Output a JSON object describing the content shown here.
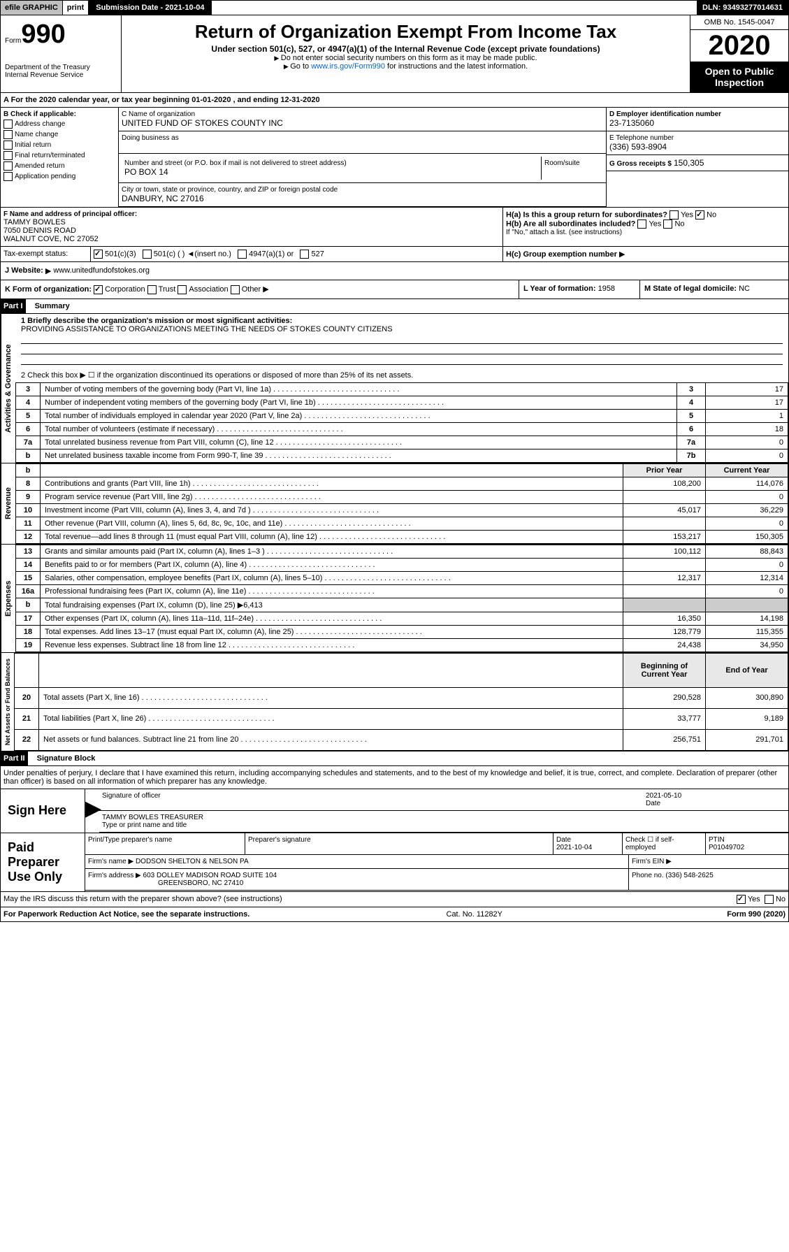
{
  "topbar": {
    "efile": "efile GRAPHIC",
    "print": "print",
    "submission": "Submission Date - 2021-10-04",
    "dln": "DLN: 93493277014631"
  },
  "header": {
    "form_prefix": "Form",
    "form_num": "990",
    "dept": "Department of the Treasury\nInternal Revenue Service",
    "title": "Return of Organization Exempt From Income Tax",
    "subtitle": "Under section 501(c), 527, or 4947(a)(1) of the Internal Revenue Code (except private foundations)",
    "note1": "Do not enter social security numbers on this form as it may be made public.",
    "note2_pre": "Go to ",
    "note2_link": "www.irs.gov/Form990",
    "note2_post": " for instructions and the latest information.",
    "omb": "OMB No. 1545-0047",
    "year": "2020",
    "inspect": "Open to Public Inspection"
  },
  "period": {
    "text": "A For the 2020 calendar year, or tax year beginning 01-01-2020    , and ending 12-31-2020"
  },
  "checkboxes": {
    "heading": "B Check if applicable:",
    "items": [
      "Address change",
      "Name change",
      "Initial return",
      "Final return/terminated",
      "Amended return",
      "Application pending"
    ]
  },
  "org": {
    "name_label": "C Name of organization",
    "name": "UNITED FUND OF STOKES COUNTY INC",
    "dba_label": "Doing business as",
    "addr_label": "Number and street (or P.O. box if mail is not delivered to street address)",
    "room_label": "Room/suite",
    "addr": "PO BOX 14",
    "city_label": "City or town, state or province, country, and ZIP or foreign postal code",
    "city": "DANBURY, NC  27016"
  },
  "ein": {
    "label": "D Employer identification number",
    "value": "23-7135060"
  },
  "phone": {
    "label": "E Telephone number",
    "value": "(336) 593-8904"
  },
  "gross": {
    "label": "G Gross receipts $",
    "value": "150,305"
  },
  "officer": {
    "label": "F Name and address of principal officer:",
    "name": "TAMMY BOWLES",
    "addr1": "7050 DENNIS ROAD",
    "addr2": "WALNUT COVE, NC  27052"
  },
  "ha": {
    "label": "H(a) Is this a group return for subordinates?",
    "yes": "Yes",
    "no": "No"
  },
  "hb": {
    "label": "H(b) Are all subordinates included?",
    "note": "If \"No,\" attach a list. (see instructions)"
  },
  "hc": {
    "label": "H(c) Group exemption number"
  },
  "tax_status": {
    "label": "Tax-exempt status:",
    "opt1": "501(c)(3)",
    "opt2": "501(c) (  ) ◄(insert no.)",
    "opt3": "4947(a)(1) or",
    "opt4": "527"
  },
  "website": {
    "label": "J  Website:",
    "value": "www.unitedfundofstokes.org"
  },
  "form_org": {
    "label": "K Form of organization:",
    "opts": [
      "Corporation",
      "Trust",
      "Association",
      "Other"
    ]
  },
  "year_formation": {
    "label": "L Year of formation:",
    "value": "1958"
  },
  "domicile": {
    "label": "M State of legal domicile:",
    "value": "NC"
  },
  "part1": {
    "title": "Part I",
    "subtitle": "Summary"
  },
  "mission": {
    "label": "1 Briefly describe the organization's mission or most significant activities:",
    "text": "PROVIDING ASSISTANCE TO ORGANIZATIONS MEETING THE NEEDS OF STOKES COUNTY CITIZENS"
  },
  "activities_label": "Activities & Governance",
  "revenue_label": "Revenue",
  "expenses_label": "Expenses",
  "netassets_label": "Net Assets or Fund Balances",
  "line2": "2  Check this box ▶ ☐ if the organization discontinued its operations or disposed of more than 25% of its net assets.",
  "lines_nums": [
    {
      "n": "3",
      "label": "Number of voting members of the governing body (Part VI, line 1a)",
      "box": "3",
      "val": "17"
    },
    {
      "n": "4",
      "label": "Number of independent voting members of the governing body (Part VI, line 1b)",
      "box": "4",
      "val": "17"
    },
    {
      "n": "5",
      "label": "Total number of individuals employed in calendar year 2020 (Part V, line 2a)",
      "box": "5",
      "val": "1"
    },
    {
      "n": "6",
      "label": "Total number of volunteers (estimate if necessary)",
      "box": "6",
      "val": "18"
    },
    {
      "n": "7a",
      "label": "Total unrelated business revenue from Part VIII, column (C), line 12",
      "box": "7a",
      "val": "0"
    },
    {
      "n": "b",
      "label": "Net unrelated business taxable income from Form 990-T, line 39",
      "box": "7b",
      "val": "0"
    }
  ],
  "prior_year": "Prior Year",
  "current_year": "Current Year",
  "revenue_lines": [
    {
      "n": "8",
      "label": "Contributions and grants (Part VIII, line 1h)",
      "prior": "108,200",
      "curr": "114,076"
    },
    {
      "n": "9",
      "label": "Program service revenue (Part VIII, line 2g)",
      "prior": "",
      "curr": "0"
    },
    {
      "n": "10",
      "label": "Investment income (Part VIII, column (A), lines 3, 4, and 7d )",
      "prior": "45,017",
      "curr": "36,229"
    },
    {
      "n": "11",
      "label": "Other revenue (Part VIII, column (A), lines 5, 6d, 8c, 9c, 10c, and 11e)",
      "prior": "",
      "curr": "0"
    },
    {
      "n": "12",
      "label": "Total revenue—add lines 8 through 11 (must equal Part VIII, column (A), line 12)",
      "prior": "153,217",
      "curr": "150,305"
    }
  ],
  "expense_lines": [
    {
      "n": "13",
      "label": "Grants and similar amounts paid (Part IX, column (A), lines 1–3 )",
      "prior": "100,112",
      "curr": "88,843"
    },
    {
      "n": "14",
      "label": "Benefits paid to or for members (Part IX, column (A), line 4)",
      "prior": "",
      "curr": "0"
    },
    {
      "n": "15",
      "label": "Salaries, other compensation, employee benefits (Part IX, column (A), lines 5–10)",
      "prior": "12,317",
      "curr": "12,314"
    },
    {
      "n": "16a",
      "label": "Professional fundraising fees (Part IX, column (A), line 11e)",
      "prior": "",
      "curr": "0"
    },
    {
      "n": "b",
      "label": "Total fundraising expenses (Part IX, column (D), line 25) ▶6,413",
      "prior": "—",
      "curr": "—"
    },
    {
      "n": "17",
      "label": "Other expenses (Part IX, column (A), lines 11a–11d, 11f–24e)",
      "prior": "16,350",
      "curr": "14,198"
    },
    {
      "n": "18",
      "label": "Total expenses. Add lines 13–17 (must equal Part IX, column (A), line 25)",
      "prior": "128,779",
      "curr": "115,355"
    },
    {
      "n": "19",
      "label": "Revenue less expenses. Subtract line 18 from line 12",
      "prior": "24,438",
      "curr": "34,950"
    }
  ],
  "begin_year": "Beginning of Current Year",
  "end_year": "End of Year",
  "asset_lines": [
    {
      "n": "20",
      "label": "Total assets (Part X, line 16)",
      "prior": "290,528",
      "curr": "300,890"
    },
    {
      "n": "21",
      "label": "Total liabilities (Part X, line 26)",
      "prior": "33,777",
      "curr": "9,189"
    },
    {
      "n": "22",
      "label": "Net assets or fund balances. Subtract line 21 from line 20",
      "prior": "256,751",
      "curr": "291,701"
    }
  ],
  "part2": {
    "title": "Part II",
    "subtitle": "Signature Block"
  },
  "perjury": "Under penalties of perjury, I declare that I have examined this return, including accompanying schedules and statements, and to the best of my knowledge and belief, it is true, correct, and complete. Declaration of preparer (other than officer) is based on all information of which preparer has any knowledge.",
  "sign": {
    "label": "Sign Here",
    "sig_label": "Signature of officer",
    "date": "2021-05-10",
    "date_label": "Date",
    "name": "TAMMY BOWLES  TREASURER",
    "name_label": "Type or print name and title"
  },
  "paid": {
    "label": "Paid Preparer Use Only",
    "col1": "Print/Type preparer's name",
    "col2": "Preparer's signature",
    "col3": "Date",
    "date": "2021-10-04",
    "col4": "Check ☐ if self-employed",
    "col5": "PTIN",
    "ptin": "P01049702",
    "firm_label": "Firm's name",
    "firm": "DODSON SHELTON & NELSON PA",
    "ein_label": "Firm's EIN",
    "addr_label": "Firm's address",
    "addr": "603 DOLLEY MADISON ROAD SUITE 104",
    "city": "GREENSBORO, NC  27410",
    "phone_label": "Phone no.",
    "phone": "(336) 548-2625"
  },
  "discuss": {
    "label": "May the IRS discuss this return with the preparer shown above? (see instructions)",
    "yes": "Yes",
    "no": "No"
  },
  "footer": {
    "left": "For Paperwork Reduction Act Notice, see the separate instructions.",
    "mid": "Cat. No. 11282Y",
    "right": "Form 990 (2020)"
  }
}
